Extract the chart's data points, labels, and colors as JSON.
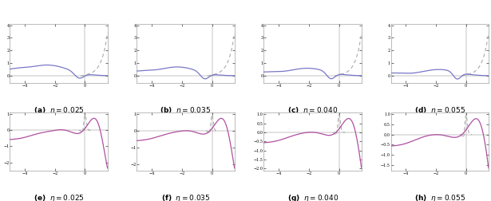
{
  "eta_values": [
    0.025,
    0.035,
    0.04,
    0.055
  ],
  "labels_top": [
    "(a)",
    "(b)",
    "(c)",
    "(d)"
  ],
  "labels_bot": [
    "(e)",
    "(f)",
    "(g)",
    "(h)"
  ],
  "b": 2.0,
  "background_color": "#ffffff",
  "curve_color_top": "#7878c8",
  "curve_color_bot_solid": "#b050a0",
  "dashed_color": "#aaaaaa",
  "label_fontsize": 6.5,
  "tick_fontsize": 3.5,
  "linewidth": 0.9
}
